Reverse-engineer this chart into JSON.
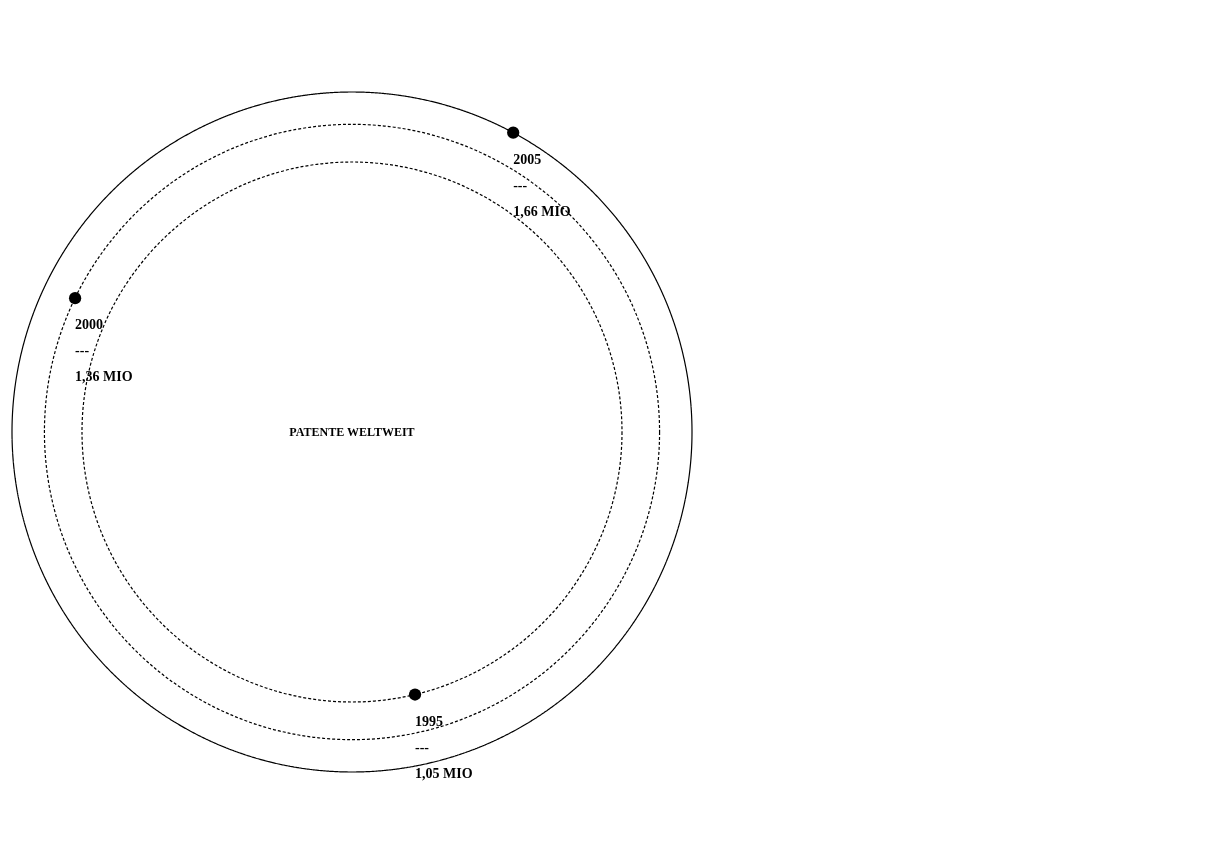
{
  "chart_data": {
    "type": "other",
    "title": "PATENTE WELTWEIT",
    "categories": [
      "1995",
      "2000",
      "2005"
    ],
    "values": [
      1.05,
      1.36,
      1.66
    ],
    "value_labels": [
      "1,05 MIO",
      "1,36 MIO",
      "1,66 MIO"
    ],
    "annotations": [
      "---",
      "---",
      "---"
    ]
  }
}
